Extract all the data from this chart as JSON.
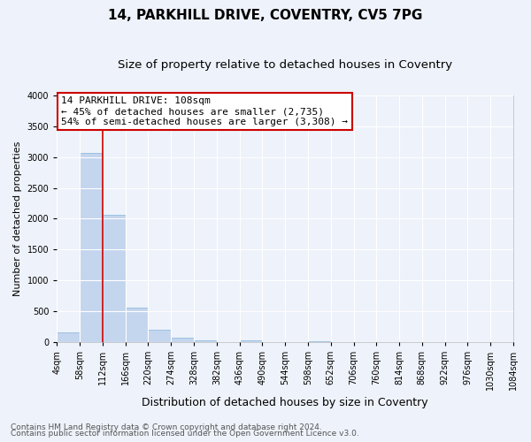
{
  "title": "14, PARKHILL DRIVE, COVENTRY, CV5 7PG",
  "subtitle": "Size of property relative to detached houses in Coventry",
  "xlabel": "Distribution of detached houses by size in Coventry",
  "ylabel": "Number of detached properties",
  "bin_edges": [
    4,
    58,
    112,
    166,
    220,
    274,
    328,
    382,
    436,
    490,
    544,
    598,
    652,
    706,
    760,
    814,
    868,
    922,
    976,
    1030,
    1084
  ],
  "bar_heights": [
    150,
    3070,
    2060,
    560,
    205,
    75,
    30,
    0,
    20,
    0,
    0,
    10,
    0,
    0,
    0,
    0,
    0,
    0,
    0,
    0
  ],
  "bar_color": "#aec6e8",
  "bar_edge_color": "#6aaad4",
  "bar_alpha": 0.65,
  "vline_x": 112,
  "vline_color": "#cc0000",
  "ylim": [
    0,
    4000
  ],
  "yticks": [
    0,
    500,
    1000,
    1500,
    2000,
    2500,
    3000,
    3500,
    4000
  ],
  "annotation_title": "14 PARKHILL DRIVE: 108sqm",
  "annotation_line1": "← 45% of detached houses are smaller (2,735)",
  "annotation_line2": "54% of semi-detached houses are larger (3,308) →",
  "annotation_box_facecolor": "#ffffff",
  "annotation_box_edgecolor": "#cc0000",
  "footer1": "Contains HM Land Registry data © Crown copyright and database right 2024.",
  "footer2": "Contains public sector information licensed under the Open Government Licence v3.0.",
  "background_color": "#eef2fa",
  "grid_color": "#ffffff",
  "title_fontsize": 11,
  "subtitle_fontsize": 9.5,
  "xlabel_fontsize": 9,
  "ylabel_fontsize": 8,
  "tick_fontsize": 7,
  "annot_fontsize": 8,
  "footer_fontsize": 6.5
}
